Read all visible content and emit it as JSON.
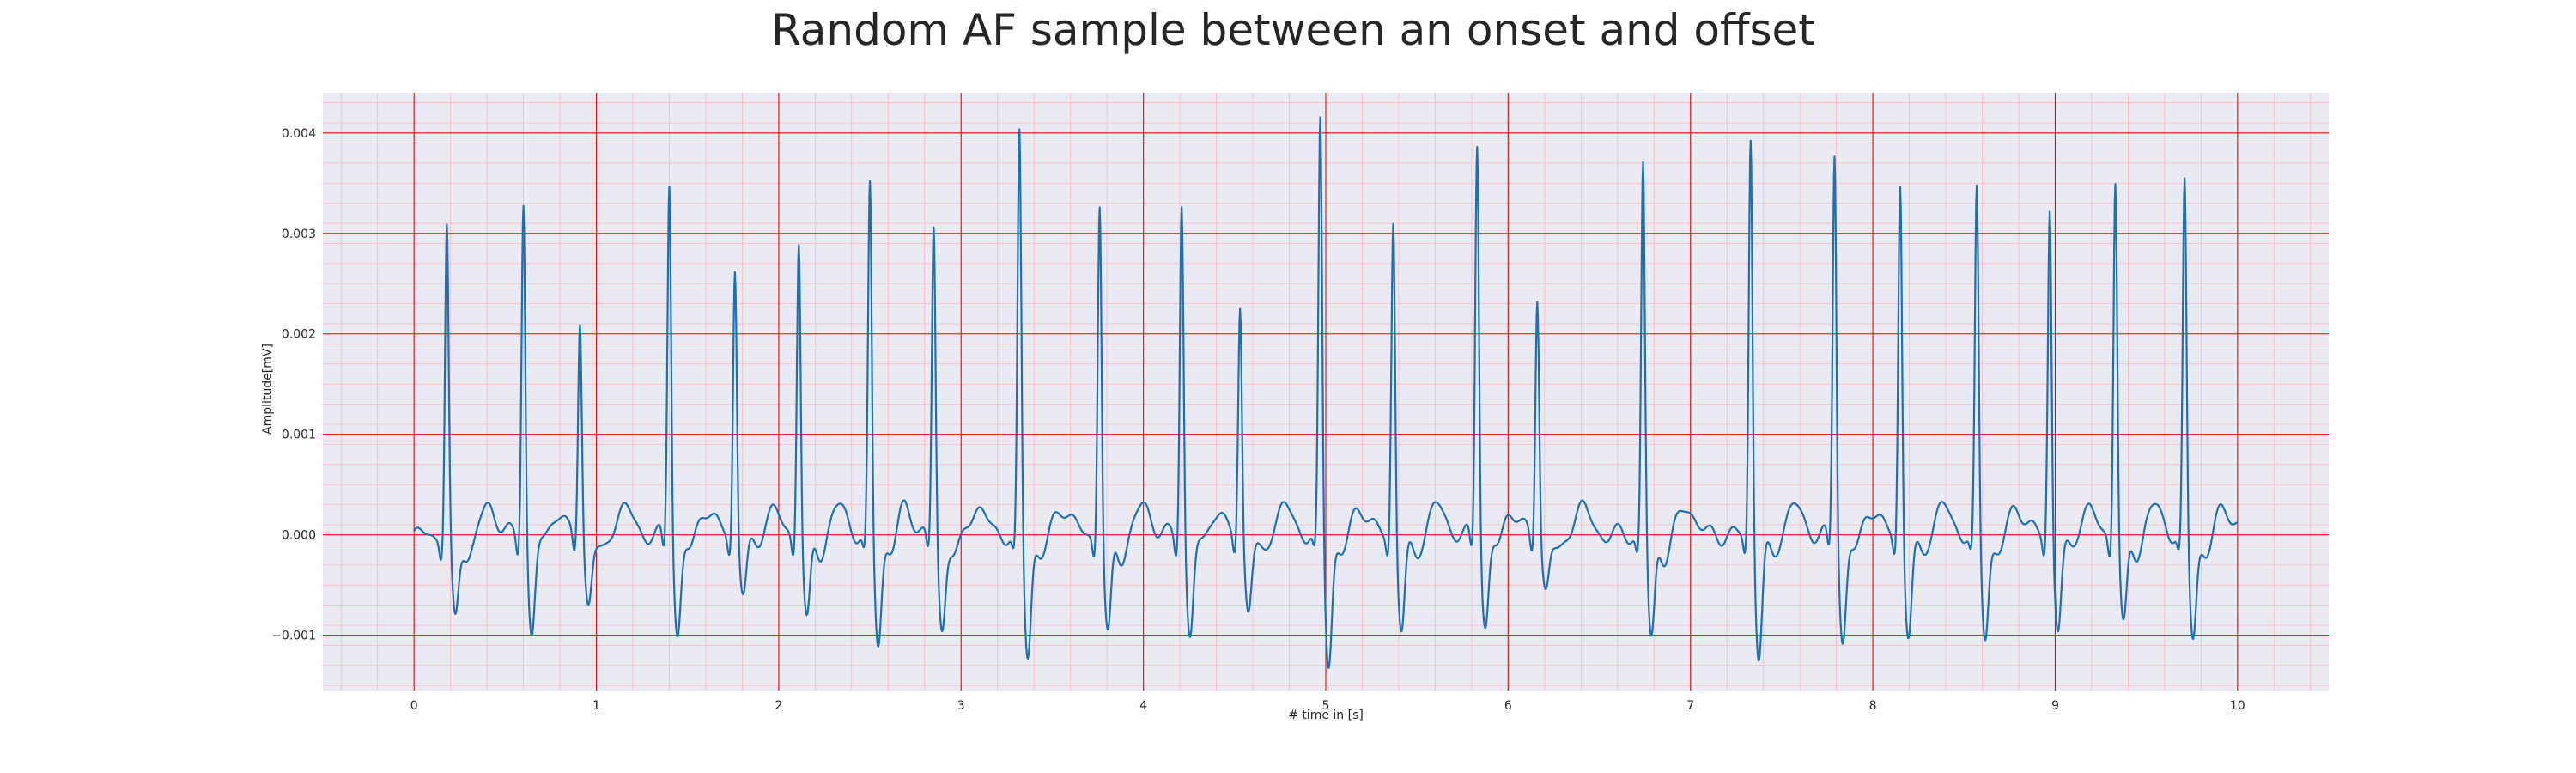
{
  "chart_data": {
    "type": "line",
    "title": "Random AF sample between an onset and offset",
    "xlabel": "# time in [s]",
    "ylabel": "Amplitude[mV]",
    "xlim": [
      -0.5,
      10.5
    ],
    "ylim": [
      -0.00155,
      0.0044
    ],
    "xticks": [
      0,
      1,
      2,
      3,
      4,
      5,
      6,
      7,
      8,
      9,
      10
    ],
    "xtick_labels": [
      "0",
      "1",
      "2",
      "3",
      "4",
      "5",
      "6",
      "7",
      "8",
      "9",
      "10"
    ],
    "yticks": [
      -0.001,
      0.0,
      0.001,
      0.002,
      0.003,
      0.004
    ],
    "ytick_labels": [
      "−0.001",
      "0.000",
      "0.001",
      "0.002",
      "0.003",
      "0.004"
    ],
    "grid": {
      "major": true,
      "minor": true,
      "major_color": "#ff0000",
      "minor_color": "#ffb6c1"
    },
    "background_color": "#eaeaf2",
    "line_color": "#1f6fb4",
    "series": [
      {
        "sample_rate_hz": 300,
        "duration_s": 10.0,
        "peaks": [
          {
            "t": 0.18,
            "amp": 0.0031,
            "neg": -0.00085
          },
          {
            "t": 0.6,
            "amp": 0.00337,
            "neg": -0.00098
          },
          {
            "t": 0.91,
            "amp": 0.00213,
            "neg": -0.00063
          },
          {
            "t": 1.4,
            "amp": 0.00357,
            "neg": -0.00098
          },
          {
            "t": 1.76,
            "amp": 0.00267,
            "neg": -0.00055
          },
          {
            "t": 2.11,
            "amp": 0.00301,
            "neg": -0.00087
          },
          {
            "t": 2.5,
            "amp": 0.00349,
            "neg": -0.00107
          },
          {
            "t": 2.85,
            "amp": 0.00309,
            "neg": -0.00093
          },
          {
            "t": 3.32,
            "amp": 0.004,
            "neg": -0.00118
          },
          {
            "t": 3.76,
            "amp": 0.00337,
            "neg": -0.00103
          },
          {
            "t": 4.21,
            "amp": 0.00336,
            "neg": -0.001
          },
          {
            "t": 4.53,
            "amp": 0.0023,
            "neg": -0.0007
          },
          {
            "t": 4.97,
            "amp": 0.00413,
            "neg": -0.00125
          },
          {
            "t": 5.37,
            "amp": 0.00317,
            "neg": -0.00093
          },
          {
            "t": 5.83,
            "amp": 0.00397,
            "neg": -0.0009
          },
          {
            "t": 6.16,
            "amp": 0.00238,
            "neg": -0.0005
          },
          {
            "t": 6.74,
            "amp": 0.00373,
            "neg": -0.00105
          },
          {
            "t": 7.33,
            "amp": 0.00401,
            "neg": -0.0012
          },
          {
            "t": 7.79,
            "amp": 0.00386,
            "neg": -0.00105
          },
          {
            "t": 8.15,
            "amp": 0.00354,
            "neg": -0.00098
          },
          {
            "t": 8.57,
            "amp": 0.00342,
            "neg": -0.00098
          },
          {
            "t": 8.97,
            "amp": 0.00329,
            "neg": -0.00092
          },
          {
            "t": 9.33,
            "amp": 0.00361,
            "neg": -0.00093
          },
          {
            "t": 9.71,
            "amp": 0.0035,
            "neg": -0.00099
          }
        ]
      }
    ]
  }
}
